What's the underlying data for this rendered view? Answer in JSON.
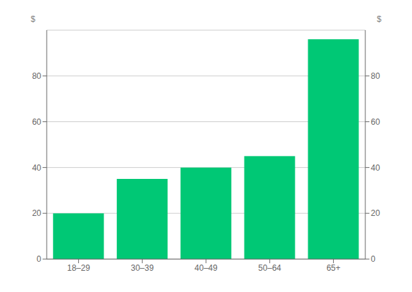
{
  "chart_data": {
    "type": "bar",
    "categories": [
      "18–29",
      "30–39",
      "40–49",
      "50–64",
      "65+"
    ],
    "values": [
      20,
      35,
      40,
      45,
      96
    ],
    "color": "#00C875",
    "ylim": [
      0,
      100
    ],
    "yticks": [
      0,
      20,
      40,
      60,
      80
    ],
    "ylabel": "$",
    "y2label": "$",
    "y2lim": [
      0,
      100
    ],
    "y2ticks": [
      0,
      20,
      40,
      60,
      80
    ],
    "grid": true
  }
}
